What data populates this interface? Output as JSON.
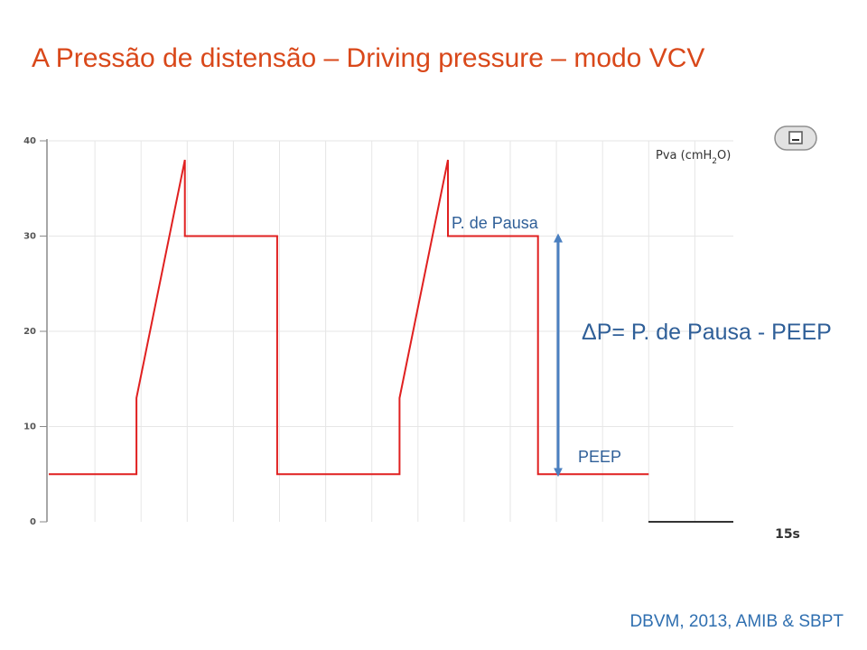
{
  "slide": {
    "title": "A Pressão de distensão – Driving pressure – modo VCV",
    "citation": "DBVM, 2013, AMIB & SBPT"
  },
  "chart_data": {
    "type": "line",
    "title": "",
    "ylabel_main": "Pva (cmH",
    "ylabel_sub": "2",
    "ylabel_end": "O)",
    "xlabel": "15s",
    "ylim": [
      0,
      40
    ],
    "yticks": [
      0,
      10,
      20,
      30,
      40
    ],
    "grid": true,
    "series": [
      {
        "color": "#e02020",
        "x": [
          0,
          1.9,
          1.9,
          2.95,
          2.95,
          4.95,
          4.95,
          7.6,
          7.6,
          8.65,
          8.65,
          10.6,
          10.6,
          13
        ],
        "y": [
          5,
          5,
          13,
          38,
          30,
          30,
          5,
          5,
          13,
          38,
          30,
          30,
          5,
          5
        ]
      }
    ],
    "annotations": {
      "plateau_label": "P. de Pausa",
      "peep_label": "PEEP",
      "delta_label": "ΔP= P. de Pausa - PEEP",
      "arrow_color": "#4a7fc0",
      "text_color": "#2f5f98"
    },
    "icon": "minimize-button-icon"
  }
}
